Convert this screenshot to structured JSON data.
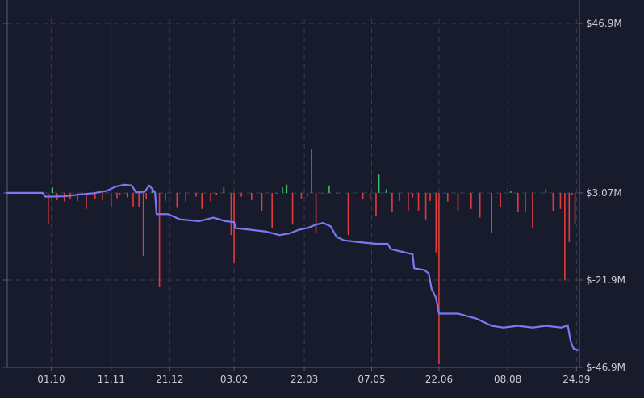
{
  "chart_data": {
    "type": "bar+line",
    "title": "",
    "xlabel": "",
    "ylabel": "",
    "y_ticks": [
      {
        "value": 46.9,
        "label": "$46.9M"
      },
      {
        "value": 3.07,
        "label": "$3.07M"
      },
      {
        "value": -21.9,
        "label": "$-21.9M"
      },
      {
        "value": -46.9,
        "label": "$-46.9M"
      }
    ],
    "ylim": [
      -46.9,
      46.9
    ],
    "x_ticks": [
      {
        "date": "2023-10-01",
        "label": "01.10"
      },
      {
        "date": "2023-11-11",
        "label": "11.11"
      },
      {
        "date": "2023-12-21",
        "label": "21.12"
      },
      {
        "date": "2024-02-03",
        "label": "03.02"
      },
      {
        "date": "2024-03-22",
        "label": "22.03"
      },
      {
        "date": "2024-05-07",
        "label": "07.05"
      },
      {
        "date": "2024-06-22",
        "label": "22.06"
      },
      {
        "date": "2024-08-08",
        "label": "08.08"
      },
      {
        "date": "2024-09-24",
        "label": "24.09"
      }
    ],
    "xlim": [
      "2023-09-01",
      "2024-09-26"
    ],
    "baseline": 3.07,
    "grid": true,
    "colors": {
      "background": "#181b2c",
      "grid": "#3a3d52",
      "axis": "#5a5d70",
      "line": "#7b78f0",
      "bar_positive": "#3fbf6a",
      "bar_negative": "#e23b3b",
      "text": "#c9cbd6"
    },
    "series": [
      {
        "type": "line",
        "points": [
          [
            "2023-09-01",
            3.1
          ],
          [
            "2023-09-25",
            3.1
          ],
          [
            "2023-09-27",
            2.0
          ],
          [
            "2023-10-10",
            2.1
          ],
          [
            "2023-10-20",
            2.6
          ],
          [
            "2023-10-30",
            3.0
          ],
          [
            "2023-11-08",
            3.6
          ],
          [
            "2023-11-14",
            4.7
          ],
          [
            "2023-11-20",
            5.2
          ],
          [
            "2023-11-25",
            5.0
          ],
          [
            "2023-11-28",
            3.2
          ],
          [
            "2023-12-04",
            3.4
          ],
          [
            "2023-12-07",
            5.0
          ],
          [
            "2023-12-11",
            3.2
          ],
          [
            "2023-12-12",
            -3.0
          ],
          [
            "2023-12-20",
            -3.0
          ],
          [
            "2023-12-28",
            -4.5
          ],
          [
            "2024-01-10",
            -5.0
          ],
          [
            "2024-01-20",
            -4.0
          ],
          [
            "2024-01-28",
            -5.0
          ],
          [
            "2024-02-03",
            -5.3
          ],
          [
            "2024-02-04",
            -7.0
          ],
          [
            "2024-02-15",
            -7.5
          ],
          [
            "2024-02-25",
            -8.0
          ],
          [
            "2024-03-05",
            -9.0
          ],
          [
            "2024-03-12",
            -8.5
          ],
          [
            "2024-03-18",
            -7.5
          ],
          [
            "2024-03-24",
            -7.0
          ],
          [
            "2024-03-30",
            -6.0
          ],
          [
            "2024-04-04",
            -5.5
          ],
          [
            "2024-04-09",
            -6.5
          ],
          [
            "2024-04-13",
            -9.5
          ],
          [
            "2024-04-18",
            -10.5
          ],
          [
            "2024-04-28",
            -11.0
          ],
          [
            "2024-05-10",
            -11.5
          ],
          [
            "2024-05-18",
            -11.5
          ],
          [
            "2024-05-20",
            -13.0
          ],
          [
            "2024-05-30",
            -14.0
          ],
          [
            "2024-06-04",
            -14.5
          ],
          [
            "2024-06-05",
            -18.5
          ],
          [
            "2024-06-12",
            -19.0
          ],
          [
            "2024-06-15",
            -20.0
          ],
          [
            "2024-06-17",
            -24.5
          ],
          [
            "2024-06-20",
            -27.0
          ],
          [
            "2024-06-22",
            -31.5
          ],
          [
            "2024-07-05",
            -31.5
          ],
          [
            "2024-07-18",
            -33.0
          ],
          [
            "2024-07-28",
            -35.0
          ],
          [
            "2024-08-05",
            -35.5
          ],
          [
            "2024-08-15",
            -35.0
          ],
          [
            "2024-08-25",
            -35.5
          ],
          [
            "2024-09-03",
            -35.0
          ],
          [
            "2024-09-14",
            -35.5
          ],
          [
            "2024-09-18",
            -34.8
          ],
          [
            "2024-09-20",
            -39.5
          ],
          [
            "2024-09-22",
            -41.5
          ],
          [
            "2024-09-25",
            -42.0
          ]
        ]
      },
      {
        "type": "bar",
        "points": [
          [
            "2023-09-29",
            -5.8
          ],
          [
            "2023-10-02",
            4.5
          ],
          [
            "2023-10-05",
            1.0
          ],
          [
            "2023-10-10",
            0.6
          ],
          [
            "2023-10-14",
            1.2
          ],
          [
            "2023-10-19",
            0.8
          ],
          [
            "2023-10-25",
            -1.5
          ],
          [
            "2023-10-31",
            1.3
          ],
          [
            "2023-11-05",
            0.9
          ],
          [
            "2023-11-11",
            -1.0
          ],
          [
            "2023-11-15",
            1.6
          ],
          [
            "2023-11-17",
            2.5
          ],
          [
            "2023-11-22",
            1.8
          ],
          [
            "2023-11-26",
            -0.8
          ],
          [
            "2023-11-30",
            -1.0
          ],
          [
            "2023-12-03",
            -15.0
          ],
          [
            "2023-12-05",
            1.2
          ],
          [
            "2023-12-09",
            4.0
          ],
          [
            "2023-12-14",
            -24.0
          ],
          [
            "2023-12-18",
            0.8
          ],
          [
            "2023-12-26",
            -1.2
          ],
          [
            "2024-01-01",
            0.6
          ],
          [
            "2024-01-08",
            2.0
          ],
          [
            "2024-01-12",
            -1.5
          ],
          [
            "2024-01-18",
            0.7
          ],
          [
            "2024-01-22",
            2.5
          ],
          [
            "2024-01-27",
            4.5
          ],
          [
            "2024-02-01",
            -9.0
          ],
          [
            "2024-02-03",
            -17.0
          ],
          [
            "2024-02-08",
            2.0
          ],
          [
            "2024-02-15",
            1.0
          ],
          [
            "2024-02-22",
            -2.0
          ],
          [
            "2024-02-29",
            -7.0
          ],
          [
            "2024-03-03",
            3.0
          ],
          [
            "2024-03-07",
            4.5
          ],
          [
            "2024-03-10",
            5.2
          ],
          [
            "2024-03-14",
            -6.0
          ],
          [
            "2024-03-20",
            1.5
          ],
          [
            "2024-03-24",
            2.0
          ],
          [
            "2024-03-27",
            14.5
          ],
          [
            "2024-03-30",
            -8.5
          ],
          [
            "2024-04-04",
            3.0
          ],
          [
            "2024-04-08",
            5.0
          ],
          [
            "2024-04-13",
            3.0
          ],
          [
            "2024-04-21",
            -9.0
          ],
          [
            "2024-05-01",
            1.2
          ],
          [
            "2024-05-06",
            1.5
          ],
          [
            "2024-05-10",
            -3.5
          ],
          [
            "2024-05-12",
            7.8
          ],
          [
            "2024-05-17",
            4.0
          ],
          [
            "2024-05-21",
            -2.5
          ],
          [
            "2024-05-26",
            0.8
          ],
          [
            "2024-06-01",
            -2.0
          ],
          [
            "2024-06-04",
            1.8
          ],
          [
            "2024-06-08",
            -2.0
          ],
          [
            "2024-06-13",
            -4.5
          ],
          [
            "2024-06-16",
            0.8
          ],
          [
            "2024-06-20",
            -14.0
          ],
          [
            "2024-06-22",
            -46.0
          ],
          [
            "2024-06-28",
            0.6
          ],
          [
            "2024-07-05",
            -2.0
          ],
          [
            "2024-07-14",
            -1.5
          ],
          [
            "2024-07-20",
            -4.0
          ],
          [
            "2024-07-28",
            -8.5
          ],
          [
            "2024-08-03",
            -1.0
          ],
          [
            "2024-08-10",
            3.5
          ],
          [
            "2024-08-15",
            -2.5
          ],
          [
            "2024-08-20",
            -2.5
          ],
          [
            "2024-08-25",
            -7.0
          ],
          [
            "2024-09-03",
            4.0
          ],
          [
            "2024-09-08",
            -2.0
          ],
          [
            "2024-09-13",
            -1.5
          ],
          [
            "2024-09-16",
            -22.0
          ],
          [
            "2024-09-19",
            -11.0
          ],
          [
            "2024-09-21",
            2.5
          ],
          [
            "2024-09-23",
            -6.0
          ]
        ]
      }
    ]
  }
}
